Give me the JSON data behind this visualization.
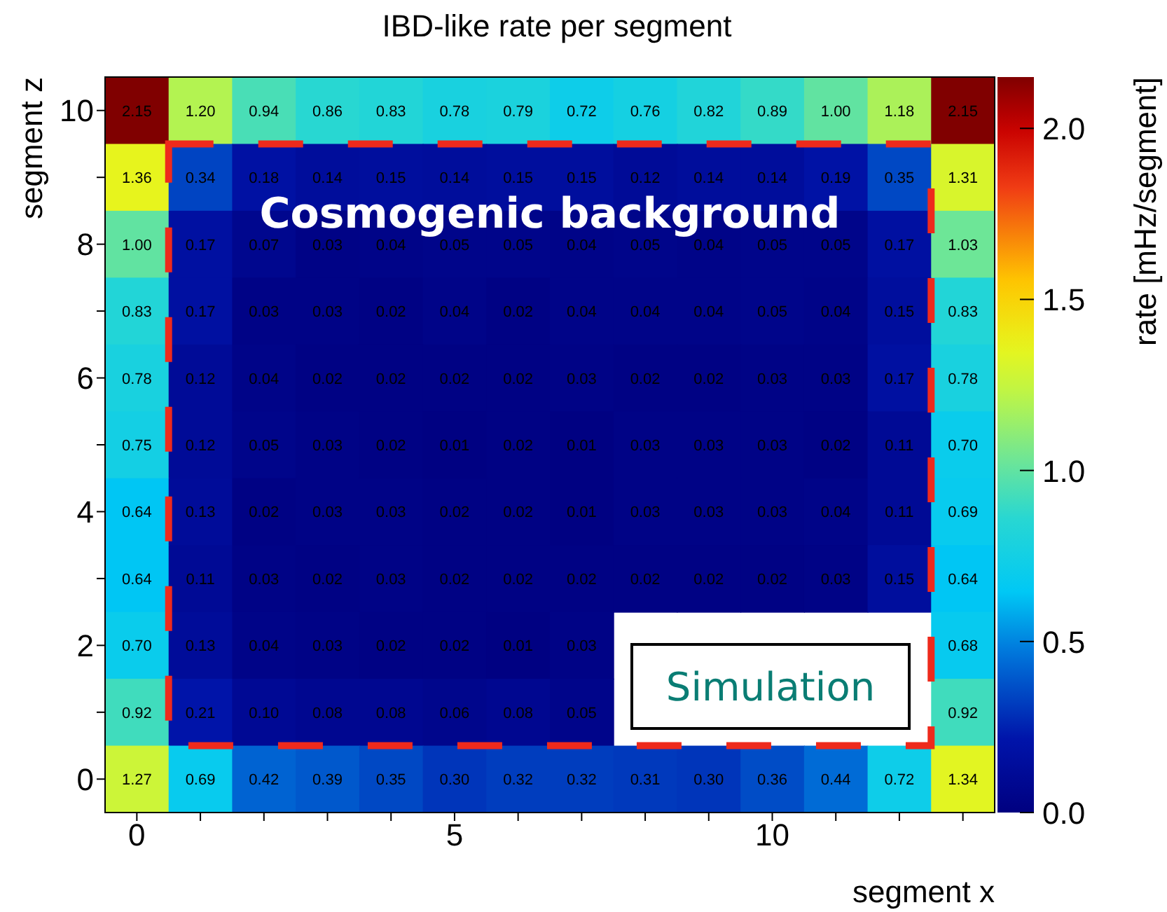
{
  "chart_data": {
    "type": "heatmap",
    "title": "IBD-like rate per segment",
    "xlabel": "segment x",
    "ylabel": "segment z",
    "clabel": "rate [mHz/segment]",
    "categories": [
      "0",
      null,
      null,
      null,
      null,
      "5",
      null,
      null,
      null,
      null,
      "10",
      null,
      null,
      null
    ],
    "y_categories": [
      "10",
      null,
      "8",
      null,
      "6",
      null,
      "4",
      null,
      "2",
      null,
      "0"
    ],
    "cells": [
      [
        2.15,
        1.2,
        0.94,
        0.86,
        0.83,
        0.78,
        0.79,
        0.72,
        0.76,
        0.82,
        0.89,
        1.0,
        1.18,
        2.15
      ],
      [
        1.36,
        0.34,
        0.18,
        0.14,
        0.15,
        0.14,
        0.15,
        0.15,
        0.12,
        0.14,
        0.14,
        0.19,
        0.35,
        1.31
      ],
      [
        1.0,
        0.17,
        0.07,
        0.03,
        0.04,
        0.05,
        0.05,
        0.04,
        0.05,
        0.04,
        0.05,
        0.05,
        0.17,
        1.03
      ],
      [
        0.83,
        0.17,
        0.03,
        0.03,
        0.02,
        0.04,
        0.02,
        0.04,
        0.04,
        0.04,
        0.05,
        0.04,
        0.15,
        0.83
      ],
      [
        0.78,
        0.12,
        0.04,
        0.02,
        0.02,
        0.02,
        0.02,
        0.03,
        0.02,
        0.02,
        0.03,
        0.03,
        0.17,
        0.78
      ],
      [
        0.75,
        0.12,
        0.05,
        0.03,
        0.02,
        0.01,
        0.02,
        0.01,
        0.03,
        0.03,
        0.03,
        0.02,
        0.11,
        0.7
      ],
      [
        0.64,
        0.13,
        0.02,
        0.03,
        0.03,
        0.02,
        0.02,
        0.01,
        0.03,
        0.03,
        0.03,
        0.04,
        0.11,
        0.69
      ],
      [
        0.64,
        0.11,
        0.03,
        0.02,
        0.03,
        0.02,
        0.02,
        0.02,
        0.02,
        0.02,
        0.02,
        0.03,
        0.15,
        0.64
      ],
      [
        0.7,
        0.13,
        0.04,
        0.03,
        0.02,
        0.02,
        0.01,
        0.03,
        null,
        null,
        null,
        null,
        null,
        0.68
      ],
      [
        0.92,
        0.21,
        0.1,
        0.08,
        0.08,
        0.06,
        0.08,
        0.05,
        null,
        null,
        null,
        null,
        null,
        0.92
      ],
      [
        1.27,
        0.69,
        0.42,
        0.39,
        0.35,
        0.3,
        0.32,
        0.32,
        0.31,
        0.3,
        0.36,
        0.44,
        0.72,
        1.34
      ]
    ],
    "cell_labels": [
      [
        "2.15",
        "1.20",
        "0.94",
        "0.86",
        "0.83",
        "0.78",
        "0.79",
        "0.72",
        "0.76",
        "0.82",
        "0.89",
        "1.00",
        "1.18",
        "2.15"
      ],
      [
        "1.36",
        "0.34",
        "0.18",
        "0.14",
        "0.15",
        "0.14",
        "0.15",
        "0.15",
        "0.12",
        "0.14",
        "0.14",
        "0.19",
        "0.35",
        "1.31"
      ],
      [
        "1.00",
        "0.17",
        "0.07",
        "0.03",
        "0.04",
        "0.05",
        "0.05",
        "0.04",
        "0.05",
        "0.04",
        "0.05",
        "0.05",
        "0.17",
        "1.03"
      ],
      [
        "0.83",
        "0.17",
        "0.03",
        "0.03",
        "0.02",
        "0.04",
        "0.02",
        "0.04",
        "0.04",
        "0.04",
        "0.05",
        "0.04",
        "0.15",
        "0.83"
      ],
      [
        "0.78",
        "0.12",
        "0.04",
        "0.02",
        "0.02",
        "0.02",
        "0.02",
        "0.03",
        "0.02",
        "0.02",
        "0.03",
        "0.03",
        "0.17",
        "0.78"
      ],
      [
        "0.75",
        "0.12",
        "0.05",
        "0.03",
        "0.02",
        "0.01",
        "0.02",
        "0.01",
        "0.03",
        "0.03",
        "0.03",
        "0.02",
        "0.11",
        "0.70"
      ],
      [
        "0.64",
        "0.13",
        "0.02",
        "0.03",
        "0.03",
        "0.02",
        "0.02",
        "0.01",
        "0.03",
        "0.03",
        "0.03",
        "0.04",
        "0.11",
        "0.69"
      ],
      [
        "0.64",
        "0.11",
        "0.03",
        "0.02",
        "0.03",
        "0.02",
        "0.02",
        "0.02",
        "0.02",
        "0.02",
        "0.02",
        "0.03",
        "0.15",
        "0.64"
      ],
      [
        "0.70",
        "0.13",
        "0.04",
        "0.03",
        "0.02",
        "0.02",
        "0.01",
        "0.03",
        null,
        null,
        null,
        null,
        null,
        "0.68"
      ],
      [
        "0.92",
        "0.21",
        "0.10",
        "0.08",
        "0.08",
        "0.06",
        "0.08",
        "0.05",
        null,
        null,
        null,
        null,
        null,
        "0.92"
      ],
      [
        "1.27",
        "0.69",
        "0.42",
        "0.39",
        "0.35",
        "0.30",
        "0.32",
        "0.32",
        "0.31",
        "0.30",
        "0.36",
        "0.44",
        "0.72",
        "1.34"
      ]
    ],
    "clim": [
      0,
      2.15
    ],
    "cticks": [
      {
        "value": 0,
        "label": "0.0"
      },
      0.5,
      {
        "value": 1,
        "label": "1.0"
      },
      1.5,
      {
        "value": 2,
        "label": "2.0"
      }
    ],
    "annotations": [
      "Cosmogenic background",
      "Simulation"
    ]
  }
}
